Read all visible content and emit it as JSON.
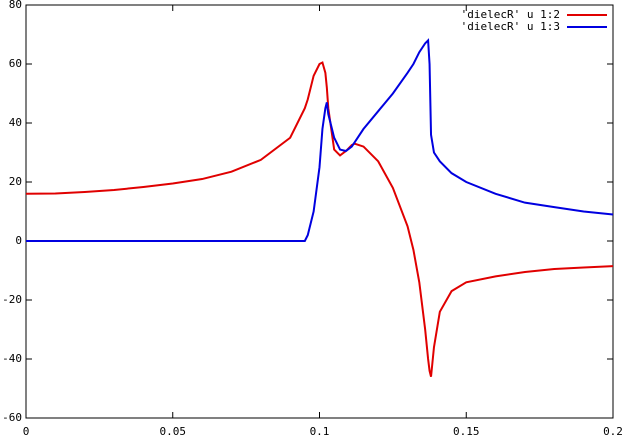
{
  "chart_data": {
    "type": "line",
    "x": [
      0,
      0.01,
      0.02,
      0.03,
      0.04,
      0.05,
      0.06,
      0.07,
      0.08,
      0.09,
      0.095,
      0.096,
      0.098,
      0.1,
      0.101,
      0.102,
      0.1025,
      0.103,
      0.105,
      0.107,
      0.109,
      0.111,
      0.112,
      0.115,
      0.12,
      0.125,
      0.13,
      0.132,
      0.134,
      0.136,
      0.137,
      0.1375,
      0.138,
      0.139,
      0.141,
      0.145,
      0.15,
      0.16,
      0.17,
      0.18,
      0.19,
      0.2
    ],
    "series": [
      {
        "name": "'dielecR' u 1:2",
        "color": "#e00000",
        "values": [
          16,
          16.1,
          16.6,
          17.3,
          18.3,
          19.5,
          21,
          23.5,
          27.5,
          35,
          45,
          48,
          56,
          60,
          60.5,
          57,
          52,
          45,
          31,
          29,
          30.5,
          32.5,
          33,
          32,
          27,
          18,
          5,
          -3,
          -14,
          -30,
          -40,
          -44,
          -46,
          -36,
          -24,
          -17,
          -14,
          -12,
          -10.5,
          -9.5,
          -9,
          -8.5
        ]
      },
      {
        "name": "'dielecR' u 1:3",
        "color": "#0000e0",
        "values": [
          0,
          0,
          0,
          0,
          0,
          0,
          0,
          0,
          0,
          0,
          0,
          2,
          10,
          25,
          38,
          45,
          47,
          43,
          35,
          31,
          30.5,
          32,
          33.5,
          38,
          44,
          50,
          57,
          60,
          64,
          67,
          68,
          60,
          36,
          30,
          27,
          23,
          20,
          16,
          13,
          11.5,
          10,
          9
        ]
      }
    ],
    "xlim": [
      0,
      0.2
    ],
    "xticks": [
      0,
      0.05,
      0.1,
      0.15,
      0.2
    ],
    "ylim": [
      -60,
      80
    ],
    "yticks": [
      -60,
      -40,
      -20,
      0,
      20,
      40,
      60,
      80
    ],
    "legend": "top-right"
  }
}
